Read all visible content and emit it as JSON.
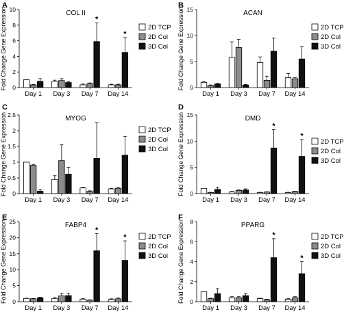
{
  "colors": {
    "2D TCP": "#ffffff",
    "2D Col": "#8c8c8c",
    "3D Col": "#111111"
  },
  "chart_data": [
    {
      "type": "bar",
      "panel": "A",
      "title": "COL II",
      "ylabel": "Fold Change Gene Expression",
      "categories": [
        "Day 1",
        "Day 3",
        "Day 7",
        "Day 14"
      ],
      "ylim": [
        0,
        10
      ],
      "yticks": [
        0,
        2,
        4,
        6,
        8,
        10
      ],
      "series": [
        {
          "name": "2D TCP",
          "values": [
            1.0,
            0.8,
            0.35,
            0.35
          ],
          "errors": [
            0,
            0.15,
            0.1,
            0.08
          ]
        },
        {
          "name": "2D Col",
          "values": [
            0.35,
            0.9,
            0.5,
            0.35
          ],
          "errors": [
            0.05,
            0.25,
            0.1,
            0.08
          ]
        },
        {
          "name": "3D Col",
          "values": [
            0.8,
            0.65,
            5.9,
            4.5
          ],
          "errors": [
            0.35,
            0.1,
            2.4,
            1.9
          ]
        }
      ],
      "significance": [
        false,
        false,
        true,
        true
      ],
      "marker": "*",
      "legend": "right"
    },
    {
      "type": "bar",
      "panel": "B",
      "title": "ACAN",
      "ylabel": "Fold Change Gene Expression",
      "categories": [
        "Day 1",
        "Day 3",
        "Day 7",
        "Day 14"
      ],
      "ylim": [
        0,
        15
      ],
      "yticks": [
        0,
        5,
        10,
        15
      ],
      "series": [
        {
          "name": "2D TCP",
          "values": [
            1.0,
            5.8,
            4.8,
            1.9
          ],
          "errors": [
            0.1,
            3.0,
            1.1,
            0.8
          ]
        },
        {
          "name": "2D Col",
          "values": [
            0.4,
            7.7,
            1.4,
            1.7
          ],
          "errors": [
            0.1,
            1.6,
            0.8,
            0.2
          ]
        },
        {
          "name": "3D Col",
          "values": [
            0.7,
            0.5,
            7.0,
            5.5
          ],
          "errors": [
            0.1,
            0.1,
            2.5,
            2.4
          ]
        }
      ],
      "significance": [
        false,
        false,
        false,
        false
      ],
      "marker": "*",
      "legend": "right"
    },
    {
      "type": "bar",
      "panel": "C",
      "title": "MYOG",
      "ylabel": "Fold Change Gene Expression",
      "categories": [
        "Day 1",
        "Day 3",
        "Day 7",
        "Day 14"
      ],
      "ylim": [
        0,
        2.5
      ],
      "yticks": [
        0,
        0.5,
        1,
        1.5,
        2,
        2.5
      ],
      "series": [
        {
          "name": "2D TCP",
          "values": [
            1.0,
            0.45,
            0.18,
            0.15
          ],
          "errors": [
            0,
            0.12,
            0.02,
            0.02
          ]
        },
        {
          "name": "2D Col",
          "values": [
            0.9,
            1.05,
            0.07,
            0.17
          ],
          "errors": [
            0.03,
            0.5,
            0.02,
            0.02
          ]
        },
        {
          "name": "3D Col",
          "values": [
            0.08,
            0.62,
            1.12,
            1.22
          ],
          "errors": [
            0.05,
            0.22,
            1.13,
            0.6
          ]
        }
      ],
      "significance": [
        false,
        false,
        false,
        false
      ],
      "marker": "*",
      "legend": "right"
    },
    {
      "type": "bar",
      "panel": "D",
      "title": "DMD",
      "ylabel": "Fold Change Gene Expression",
      "categories": [
        "Day 1",
        "Day 3",
        "Day 7",
        "Day 14"
      ],
      "ylim": [
        0,
        15
      ],
      "yticks": [
        0,
        5,
        10,
        15
      ],
      "series": [
        {
          "name": "2D TCP",
          "values": [
            1.0,
            0.3,
            0.2,
            0.2
          ],
          "errors": [
            0,
            0.1,
            0.05,
            0.05
          ]
        },
        {
          "name": "2D Col",
          "values": [
            0.2,
            0.6,
            0.3,
            0.4
          ],
          "errors": [
            0.05,
            0.1,
            0.05,
            0.05
          ]
        },
        {
          "name": "3D Col",
          "values": [
            0.8,
            0.7,
            8.7,
            7.1
          ],
          "errors": [
            0.4,
            0.2,
            3.5,
            3.2
          ]
        }
      ],
      "significance": [
        false,
        false,
        true,
        true
      ],
      "marker": "*",
      "legend": "right"
    },
    {
      "type": "bar",
      "panel": "E",
      "title": "FABP4",
      "ylabel": "Fold Change Gene Expression",
      "categories": [
        "Day 1",
        "Day 3",
        "Day 7",
        "Day 14"
      ],
      "ylim": [
        0,
        25
      ],
      "yticks": [
        0,
        5,
        10,
        15,
        20,
        25
      ],
      "series": [
        {
          "name": "2D TCP",
          "values": [
            1.0,
            1.0,
            0.8,
            0.7
          ],
          "errors": [
            0.1,
            0.3,
            0.2,
            0.2
          ]
        },
        {
          "name": "2D Col",
          "values": [
            0.9,
            1.8,
            0.5,
            0.9
          ],
          "errors": [
            0.1,
            0.8,
            0.1,
            0.3
          ]
        },
        {
          "name": "3D Col",
          "values": [
            1.2,
            1.9,
            15.9,
            12.9
          ],
          "errors": [
            0.2,
            0.8,
            5.4,
            6.1
          ]
        }
      ],
      "significance": [
        false,
        false,
        true,
        true
      ],
      "marker": "*",
      "legend": "right"
    },
    {
      "type": "bar",
      "panel": "F",
      "title": "PPARG",
      "ylabel": "Fold Change Gene Expression",
      "categories": [
        "Day 1",
        "Day 3",
        "Day 7",
        "Day 14"
      ],
      "ylim": [
        0,
        8
      ],
      "yticks": [
        0,
        2,
        4,
        6,
        8
      ],
      "series": [
        {
          "name": "2D TCP",
          "values": [
            1.0,
            0.4,
            0.3,
            0.25
          ],
          "errors": [
            0,
            0.1,
            0.05,
            0.05
          ]
        },
        {
          "name": "2D Col",
          "values": [
            0.3,
            0.4,
            0.2,
            0.4
          ],
          "errors": [
            0.05,
            0.1,
            0.05,
            0.1
          ]
        },
        {
          "name": "3D Col",
          "values": [
            0.8,
            0.6,
            4.4,
            2.8
          ],
          "errors": [
            0.5,
            0.2,
            1.9,
            1.2
          ]
        }
      ],
      "significance": [
        false,
        false,
        true,
        true
      ],
      "marker": "*",
      "legend": "right"
    }
  ]
}
